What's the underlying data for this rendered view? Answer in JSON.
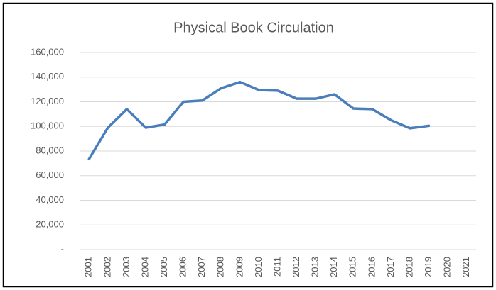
{
  "chart_data": {
    "type": "line",
    "title": "Physical Book Circulation",
    "categories": [
      "2001",
      "2002",
      "2003",
      "2004",
      "2005",
      "2006",
      "2007",
      "2008",
      "2009",
      "2010",
      "2011",
      "2012",
      "2013",
      "2014",
      "2015",
      "2016",
      "2017",
      "2018",
      "2019",
      "2020",
      "2021"
    ],
    "series": [
      {
        "name": "Physical Book Circulation",
        "color": "#4a7ebb",
        "values": [
          73500,
          99000,
          114000,
          99000,
          101500,
          120000,
          121000,
          131000,
          136000,
          129500,
          129000,
          122500,
          122500,
          126000,
          114500,
          114000,
          105000,
          98500,
          100500,
          null,
          null
        ]
      }
    ],
    "ylim": [
      0,
      160000
    ],
    "yticks": [
      {
        "value": 0,
        "label": "-"
      },
      {
        "value": 20000,
        "label": "20,000"
      },
      {
        "value": 40000,
        "label": "40,000"
      },
      {
        "value": 60000,
        "label": "60,000"
      },
      {
        "value": 80000,
        "label": "80,000"
      },
      {
        "value": 100000,
        "label": "100,000"
      },
      {
        "value": 120000,
        "label": "120,000"
      },
      {
        "value": 140000,
        "label": "140,000"
      },
      {
        "value": 160000,
        "label": "160,000"
      }
    ],
    "grid": true
  }
}
